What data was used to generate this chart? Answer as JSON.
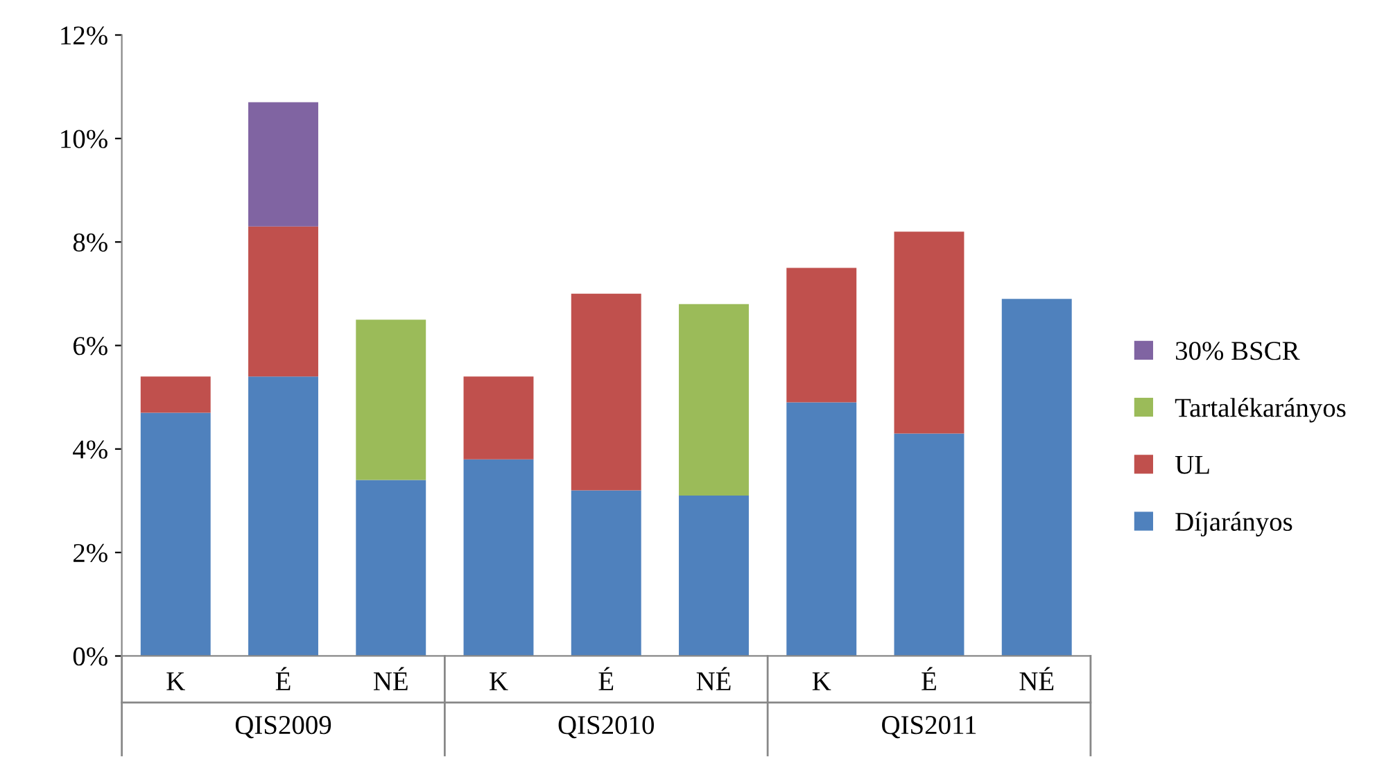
{
  "chart_data": {
    "type": "bar",
    "stacked": true,
    "categories": [
      "K",
      "É",
      "NÉ",
      "K",
      "É",
      "NÉ",
      "K",
      "É",
      "NÉ"
    ],
    "annotations": [
      "QIS2009",
      "QIS2010",
      "QIS2011"
    ],
    "series": [
      {
        "name": "Díjarányos",
        "color": "#4f81bd",
        "values": [
          4.7,
          5.4,
          3.4,
          3.8,
          3.2,
          3.1,
          4.9,
          4.3,
          6.9
        ]
      },
      {
        "name": "UL",
        "color": "#c0504d",
        "values": [
          0.7,
          2.9,
          null,
          1.6,
          3.8,
          null,
          2.6,
          3.9,
          null
        ]
      },
      {
        "name": "Tartalékarányos",
        "color": "#9bbb59",
        "values": [
          null,
          null,
          3.1,
          null,
          null,
          3.7,
          null,
          null,
          null
        ]
      },
      {
        "name": "30% BSCR",
        "color": "#8064a2",
        "values": [
          null,
          2.4,
          null,
          null,
          null,
          null,
          null,
          null,
          null
        ]
      }
    ],
    "ylim": [
      0,
      12
    ],
    "yticks": [
      {
        "value": 0,
        "label": "0%"
      },
      {
        "value": 2,
        "label": "2%"
      },
      {
        "value": 4,
        "label": "4%"
      },
      {
        "value": 6,
        "label": "6%"
      },
      {
        "value": 8,
        "label": "8%"
      },
      {
        "value": 10,
        "label": "10%"
      },
      {
        "value": 12,
        "label": "12%"
      }
    ],
    "legend": "right",
    "grid": false
  }
}
